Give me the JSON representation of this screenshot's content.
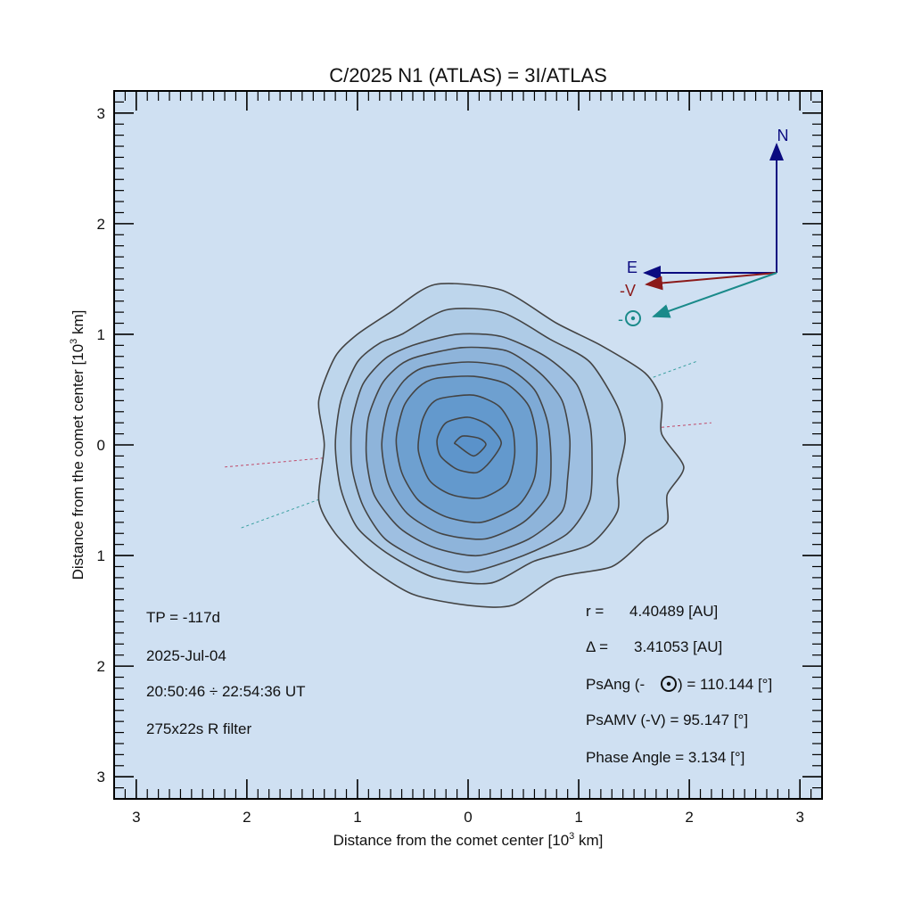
{
  "chart_data": {
    "type": "contour",
    "title": "C/2025 N1 (ATLAS) = 3I/ATLAS",
    "xlabel": "Distance from the comet center [10",
    "xlabel_sup": "3",
    "xlabel_tail": " km]",
    "ylabel": "Distance from the comet center [10",
    "ylabel_sup": "3",
    "ylabel_tail": " km]",
    "xlim": [
      -3.2,
      3.2
    ],
    "ylim": [
      -3.2,
      3.2
    ],
    "x_ticks": [
      -3,
      -2,
      -1,
      0,
      1,
      2,
      3
    ],
    "x_tick_labels": [
      "3",
      "2",
      "1",
      "0",
      "1",
      "2",
      "3"
    ],
    "y_ticks": [
      3,
      2,
      1,
      0,
      -1,
      -2,
      -3
    ],
    "y_tick_labels": [
      "3",
      "2",
      "1",
      "0",
      "1",
      "2",
      "3"
    ],
    "background_color": "#cfe0f2",
    "contour_stroke": "#444444",
    "contours": [
      {
        "level": 1,
        "fill": "#bed6ec",
        "points": [
          [
            -0.7,
            1.2
          ],
          [
            -0.3,
            1.45
          ],
          [
            0.3,
            1.4
          ],
          [
            0.8,
            1.1
          ],
          [
            1.2,
            0.9
          ],
          [
            1.6,
            0.65
          ],
          [
            1.75,
            0.4
          ],
          [
            1.75,
            0.1
          ],
          [
            1.95,
            -0.2
          ],
          [
            1.8,
            -0.45
          ],
          [
            1.8,
            -0.7
          ],
          [
            1.6,
            -0.85
          ],
          [
            1.3,
            -1.1
          ],
          [
            0.8,
            -1.2
          ],
          [
            0.4,
            -1.45
          ],
          [
            0,
            -1.45
          ],
          [
            -0.5,
            -1.35
          ],
          [
            -0.9,
            -1.1
          ],
          [
            -1.2,
            -0.8
          ],
          [
            -1.35,
            -0.5
          ],
          [
            -1.3,
            0
          ],
          [
            -1.35,
            0.4
          ],
          [
            -1.2,
            0.8
          ],
          [
            -1.0,
            1.0
          ]
        ]
      },
      {
        "level": 2,
        "fill": "#aecbe6",
        "points": [
          [
            -0.6,
            1.0
          ],
          [
            -0.2,
            1.22
          ],
          [
            0.3,
            1.2
          ],
          [
            0.75,
            0.95
          ],
          [
            1.1,
            0.75
          ],
          [
            1.35,
            0.35
          ],
          [
            1.42,
            0.05
          ],
          [
            1.35,
            -0.3
          ],
          [
            1.35,
            -0.6
          ],
          [
            1.1,
            -0.9
          ],
          [
            0.6,
            -1.05
          ],
          [
            0.2,
            -1.25
          ],
          [
            -0.3,
            -1.2
          ],
          [
            -0.7,
            -1.0
          ],
          [
            -1.0,
            -0.75
          ],
          [
            -1.15,
            -0.4
          ],
          [
            -1.2,
            0
          ],
          [
            -1.15,
            0.4
          ],
          [
            -1.0,
            0.75
          ],
          [
            -0.8,
            0.92
          ]
        ]
      },
      {
        "level": 3,
        "fill": "#9ebfe1",
        "points": [
          [
            -0.5,
            0.9
          ],
          [
            -0.1,
            1.0
          ],
          [
            0.3,
            0.98
          ],
          [
            0.7,
            0.8
          ],
          [
            0.98,
            0.55
          ],
          [
            1.1,
            0.2
          ],
          [
            1.12,
            -0.1
          ],
          [
            1.1,
            -0.5
          ],
          [
            0.9,
            -0.8
          ],
          [
            0.5,
            -1.0
          ],
          [
            0,
            -1.15
          ],
          [
            -0.4,
            -1.05
          ],
          [
            -0.75,
            -0.85
          ],
          [
            -0.95,
            -0.55
          ],
          [
            -1.05,
            -0.2
          ],
          [
            -1.05,
            0.2
          ],
          [
            -0.95,
            0.55
          ],
          [
            -0.75,
            0.78
          ]
        ]
      },
      {
        "level": 4,
        "fill": "#8eb4da",
        "points": [
          [
            -0.45,
            0.8
          ],
          [
            -0.05,
            0.88
          ],
          [
            0.35,
            0.85
          ],
          [
            0.65,
            0.65
          ],
          [
            0.85,
            0.4
          ],
          [
            0.92,
            0.05
          ],
          [
            0.9,
            -0.3
          ],
          [
            0.85,
            -0.6
          ],
          [
            0.55,
            -0.85
          ],
          [
            0.1,
            -1.0
          ],
          [
            -0.3,
            -0.93
          ],
          [
            -0.62,
            -0.75
          ],
          [
            -0.85,
            -0.45
          ],
          [
            -0.92,
            -0.1
          ],
          [
            -0.9,
            0.25
          ],
          [
            -0.78,
            0.55
          ],
          [
            -0.62,
            0.72
          ]
        ]
      },
      {
        "level": 5,
        "fill": "#7eaad6",
        "points": [
          [
            -0.4,
            0.7
          ],
          [
            0,
            0.75
          ],
          [
            0.35,
            0.7
          ],
          [
            0.6,
            0.5
          ],
          [
            0.72,
            0.2
          ],
          [
            0.75,
            -0.15
          ],
          [
            0.72,
            -0.45
          ],
          [
            0.5,
            -0.7
          ],
          [
            0.15,
            -0.85
          ],
          [
            -0.25,
            -0.8
          ],
          [
            -0.55,
            -0.62
          ],
          [
            -0.72,
            -0.35
          ],
          [
            -0.78,
            0
          ],
          [
            -0.72,
            0.35
          ],
          [
            -0.58,
            0.58
          ]
        ]
      },
      {
        "level": 6,
        "fill": "#6ea0d0",
        "points": [
          [
            -0.3,
            0.6
          ],
          [
            0.05,
            0.62
          ],
          [
            0.35,
            0.55
          ],
          [
            0.55,
            0.35
          ],
          [
            0.62,
            0.05
          ],
          [
            0.6,
            -0.3
          ],
          [
            0.45,
            -0.55
          ],
          [
            0.12,
            -0.7
          ],
          [
            -0.2,
            -0.65
          ],
          [
            -0.45,
            -0.5
          ],
          [
            -0.6,
            -0.25
          ],
          [
            -0.65,
            0.05
          ],
          [
            -0.58,
            0.35
          ],
          [
            -0.45,
            0.52
          ]
        ]
      },
      {
        "level": 7,
        "fill": "#6399cd",
        "points": [
          [
            -0.25,
            0.42
          ],
          [
            0.05,
            0.45
          ],
          [
            0.28,
            0.35
          ],
          [
            0.4,
            0.15
          ],
          [
            0.42,
            -0.1
          ],
          [
            0.35,
            -0.35
          ],
          [
            0.12,
            -0.48
          ],
          [
            -0.15,
            -0.45
          ],
          [
            -0.35,
            -0.32
          ],
          [
            -0.45,
            -0.05
          ],
          [
            -0.42,
            0.2
          ],
          [
            -0.35,
            0.35
          ]
        ]
      },
      {
        "level": 8,
        "fill": "#5e95cb",
        "points": [
          [
            -0.2,
            0.2
          ],
          [
            0,
            0.25
          ],
          [
            0.18,
            0.18
          ],
          [
            0.3,
            0.02
          ],
          [
            0.2,
            -0.15
          ],
          [
            0.08,
            -0.25
          ],
          [
            -0.1,
            -0.22
          ],
          [
            -0.25,
            -0.1
          ],
          [
            -0.28,
            0.05
          ]
        ]
      },
      {
        "level": 9,
        "fill": "#5a92ca",
        "points": [
          [
            -0.05,
            0.08
          ],
          [
            0.1,
            0.06
          ],
          [
            0.16,
            0
          ],
          [
            0.05,
            -0.1
          ],
          [
            -0.1,
            0
          ],
          [
            -0.12,
            0.02
          ]
        ]
      }
    ],
    "annotations": [
      {
        "name": "tp",
        "text": "TP = -117d"
      },
      {
        "name": "date",
        "text": "2025-Jul-04"
      },
      {
        "name": "time",
        "text": "20:50:46 ÷ 22:54:36 UT"
      },
      {
        "name": "exposure",
        "text": "275x22s R filter"
      }
    ],
    "params": [
      {
        "name": "r",
        "label": "r =",
        "value": "4.40489 [AU]"
      },
      {
        "name": "delta",
        "label": "Δ =",
        "value": "3.41053 [AU]"
      },
      {
        "name": "psang-sun",
        "label_pre": "PsAng (-",
        "symbol": "sun",
        "label_post": ") = 110.144 [°]"
      },
      {
        "name": "psamv",
        "text": "PsAMV (-V) =  95.147 [°]"
      },
      {
        "name": "phase-angle",
        "text": "Phase Angle =   3.134 [°]"
      }
    ],
    "directions": [
      {
        "name": "north",
        "label": "N",
        "color": "#0b0b80"
      },
      {
        "name": "east",
        "label": "E",
        "color": "#0b0b80"
      },
      {
        "name": "minus-v",
        "label": "-V",
        "color": "#8b1a1a"
      },
      {
        "name": "anti-sun",
        "label": "-",
        "color": "#1a8a8a"
      }
    ],
    "trail_lines": [
      {
        "name": "anti-sun-direction-line",
        "color": "#3aa0a0",
        "from": [
          -2.05,
          -0.75
        ],
        "to": [
          2.08,
          0.76
        ]
      },
      {
        "name": "minus-v-direction-line",
        "color": "#c04a6a",
        "from": [
          -2.2,
          -0.2
        ],
        "to": [
          2.2,
          0.2
        ]
      }
    ]
  }
}
